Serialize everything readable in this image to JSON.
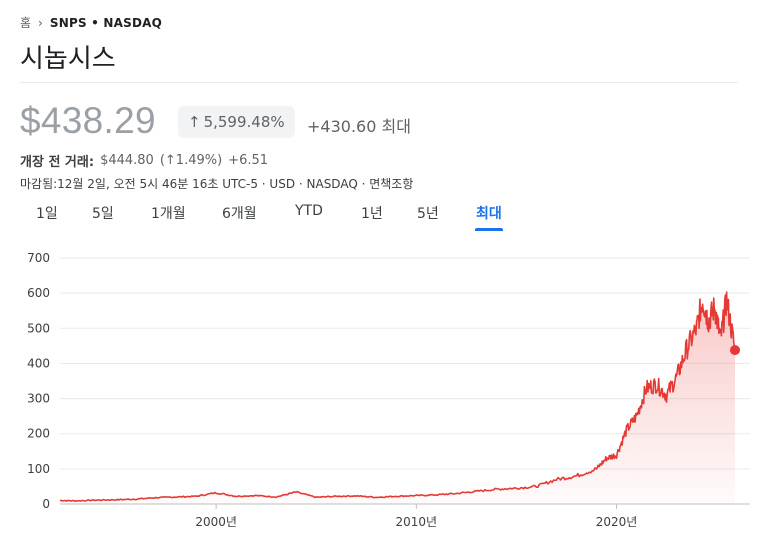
{
  "breadcrumb": {
    "home": "홈",
    "ticker": "SNPS • NASDAQ"
  },
  "title": "시놉시스",
  "quote": {
    "price": "$438.29",
    "change_pct": "5,599.48%",
    "change_abs": "+430.60 최대",
    "premarket_label": "개장 전 거래:",
    "premarket_price": "$444.80",
    "premarket_pct": "(↑1.49%)",
    "premarket_abs": "+6.51",
    "meta": "마감됨:12월 2일, 오전 5시 46분 16초 UTC-5 · USD · NASDAQ · 면책조항"
  },
  "tabs": [
    {
      "label": "1일",
      "active": false
    },
    {
      "label": "5일",
      "active": false
    },
    {
      "label": "1개월",
      "active": false
    },
    {
      "label": "6개월",
      "active": false
    },
    {
      "label": "YTD",
      "active": false
    },
    {
      "label": "1년",
      "active": false
    },
    {
      "label": "5년",
      "active": false
    },
    {
      "label": "최대",
      "active": true
    }
  ],
  "colors": {
    "line": "#e53935",
    "accent": "#1a73e8",
    "grid": "#e8eaed"
  },
  "chart_data": {
    "type": "area",
    "y_ticks": [
      0,
      100,
      200,
      300,
      400,
      500,
      600,
      700
    ],
    "x_ticks": [
      {
        "label": "2000년",
        "year": 2000
      },
      {
        "label": "2010년",
        "year": 2010
      },
      {
        "label": "2020년",
        "year": 2020
      }
    ],
    "xlim": [
      1992.2,
      2025.92
    ],
    "ylim": [
      0,
      700
    ],
    "grid": true,
    "series": [
      {
        "x": [
          1992.2,
          1993,
          1994,
          1995,
          1996,
          1997,
          1998,
          1999,
          2000,
          2001,
          2002,
          2003,
          2004,
          2005,
          2006,
          2007,
          2008,
          2009,
          2010,
          2011,
          2012,
          2013,
          2014,
          2015,
          2016,
          2017,
          2018,
          2019,
          2019.5,
          2020,
          2020.5,
          2021,
          2021.5,
          2022,
          2022.5,
          2023,
          2023.5,
          2024,
          2024.3,
          2024.6,
          2024.9,
          2025.2,
          2025.5,
          2025.92
        ],
        "y": [
          10,
          9,
          11,
          12,
          14,
          18,
          20,
          22,
          32,
          22,
          24,
          20,
          34,
          19,
          22,
          23,
          19,
          22,
          24,
          26,
          30,
          36,
          42,
          45,
          50,
          70,
          80,
          100,
          130,
          140,
          210,
          250,
          330,
          340,
          310,
          360,
          440,
          500,
          580,
          520,
          560,
          470,
          580,
          438
        ]
      }
    ]
  }
}
